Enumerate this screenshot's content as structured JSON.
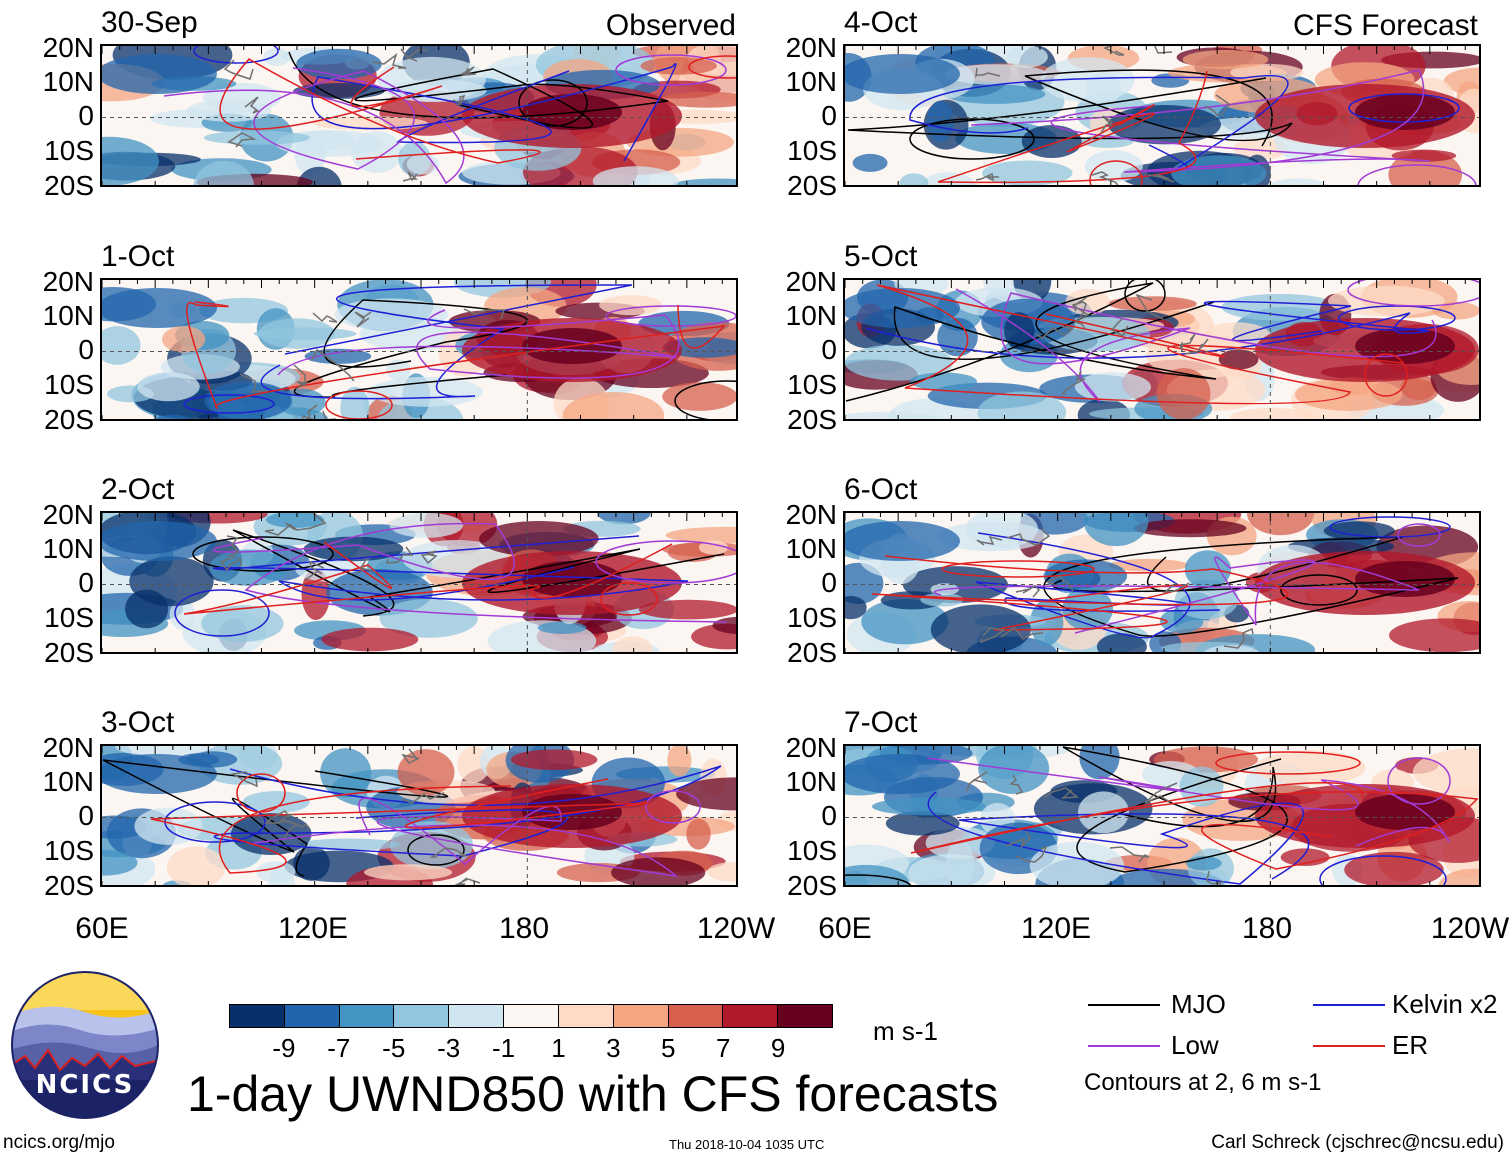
{
  "header": {
    "left_label": "Observed",
    "right_label": "CFS Forecast"
  },
  "panels_left": [
    {
      "date": "30-Sep"
    },
    {
      "date": "1-Oct"
    },
    {
      "date": "2-Oct"
    },
    {
      "date": "3-Oct"
    }
  ],
  "panels_right": [
    {
      "date": "4-Oct"
    },
    {
      "date": "5-Oct"
    },
    {
      "date": "6-Oct"
    },
    {
      "date": "7-Oct"
    }
  ],
  "lat_ticks": [
    "20N",
    "10N",
    "0",
    "10S",
    "20S"
  ],
  "lon_ticks": [
    "60E",
    "120E",
    "180",
    "120W"
  ],
  "colorbar": {
    "colors": [
      "#08306b",
      "#2166ac",
      "#4393c3",
      "#92c5de",
      "#d1e5f0",
      "#fbf6f2",
      "#fddbc7",
      "#f4a582",
      "#d6604d",
      "#b2182b",
      "#67001f"
    ],
    "labels": [
      "-9",
      "-7",
      "-5",
      "-3",
      "-1",
      "1",
      "3",
      "5",
      "7",
      "9"
    ],
    "units": "m s-1"
  },
  "legend": {
    "items": [
      {
        "label": "MJO",
        "color": "#000000"
      },
      {
        "label": "Kelvin x2",
        "color": "#1f1fd6"
      },
      {
        "label": "Low",
        "color": "#a23bd6"
      },
      {
        "label": "ER",
        "color": "#e01f1f"
      }
    ],
    "note": "Contours at 2, 6 m s-1"
  },
  "title": "1-day UWND850 with CFS forecasts",
  "footer": {
    "url": "ncics.org/mjo",
    "timestamp": "Thu 2018-10-04 1035 UTC",
    "credit": "Carl Schreck (cjschrec@ncsu.edu)",
    "logo_text": "NCICS"
  },
  "chart_data": {
    "type": "heatmap",
    "variable": "1-day zonal wind at 850 hPa (UWND850) anomaly",
    "units": "m s-1",
    "x_range": [
      "60E",
      "120W"
    ],
    "y_range": [
      "20S",
      "20N"
    ],
    "panels": [
      {
        "date": "30-Sep",
        "source": "Observed"
      },
      {
        "date": "1-Oct",
        "source": "Observed"
      },
      {
        "date": "2-Oct",
        "source": "Observed"
      },
      {
        "date": "3-Oct",
        "source": "Observed"
      },
      {
        "date": "4-Oct",
        "source": "CFS Forecast"
      },
      {
        "date": "5-Oct",
        "source": "CFS Forecast"
      },
      {
        "date": "6-Oct",
        "source": "CFS Forecast"
      },
      {
        "date": "7-Oct",
        "source": "CFS Forecast"
      }
    ],
    "contour_levels": [
      2,
      6
    ],
    "contour_series": [
      "MJO",
      "Kelvin x2",
      "Low",
      "ER"
    ],
    "color_levels": [
      -9,
      -7,
      -5,
      -3,
      -1,
      1,
      3,
      5,
      7,
      9
    ]
  }
}
